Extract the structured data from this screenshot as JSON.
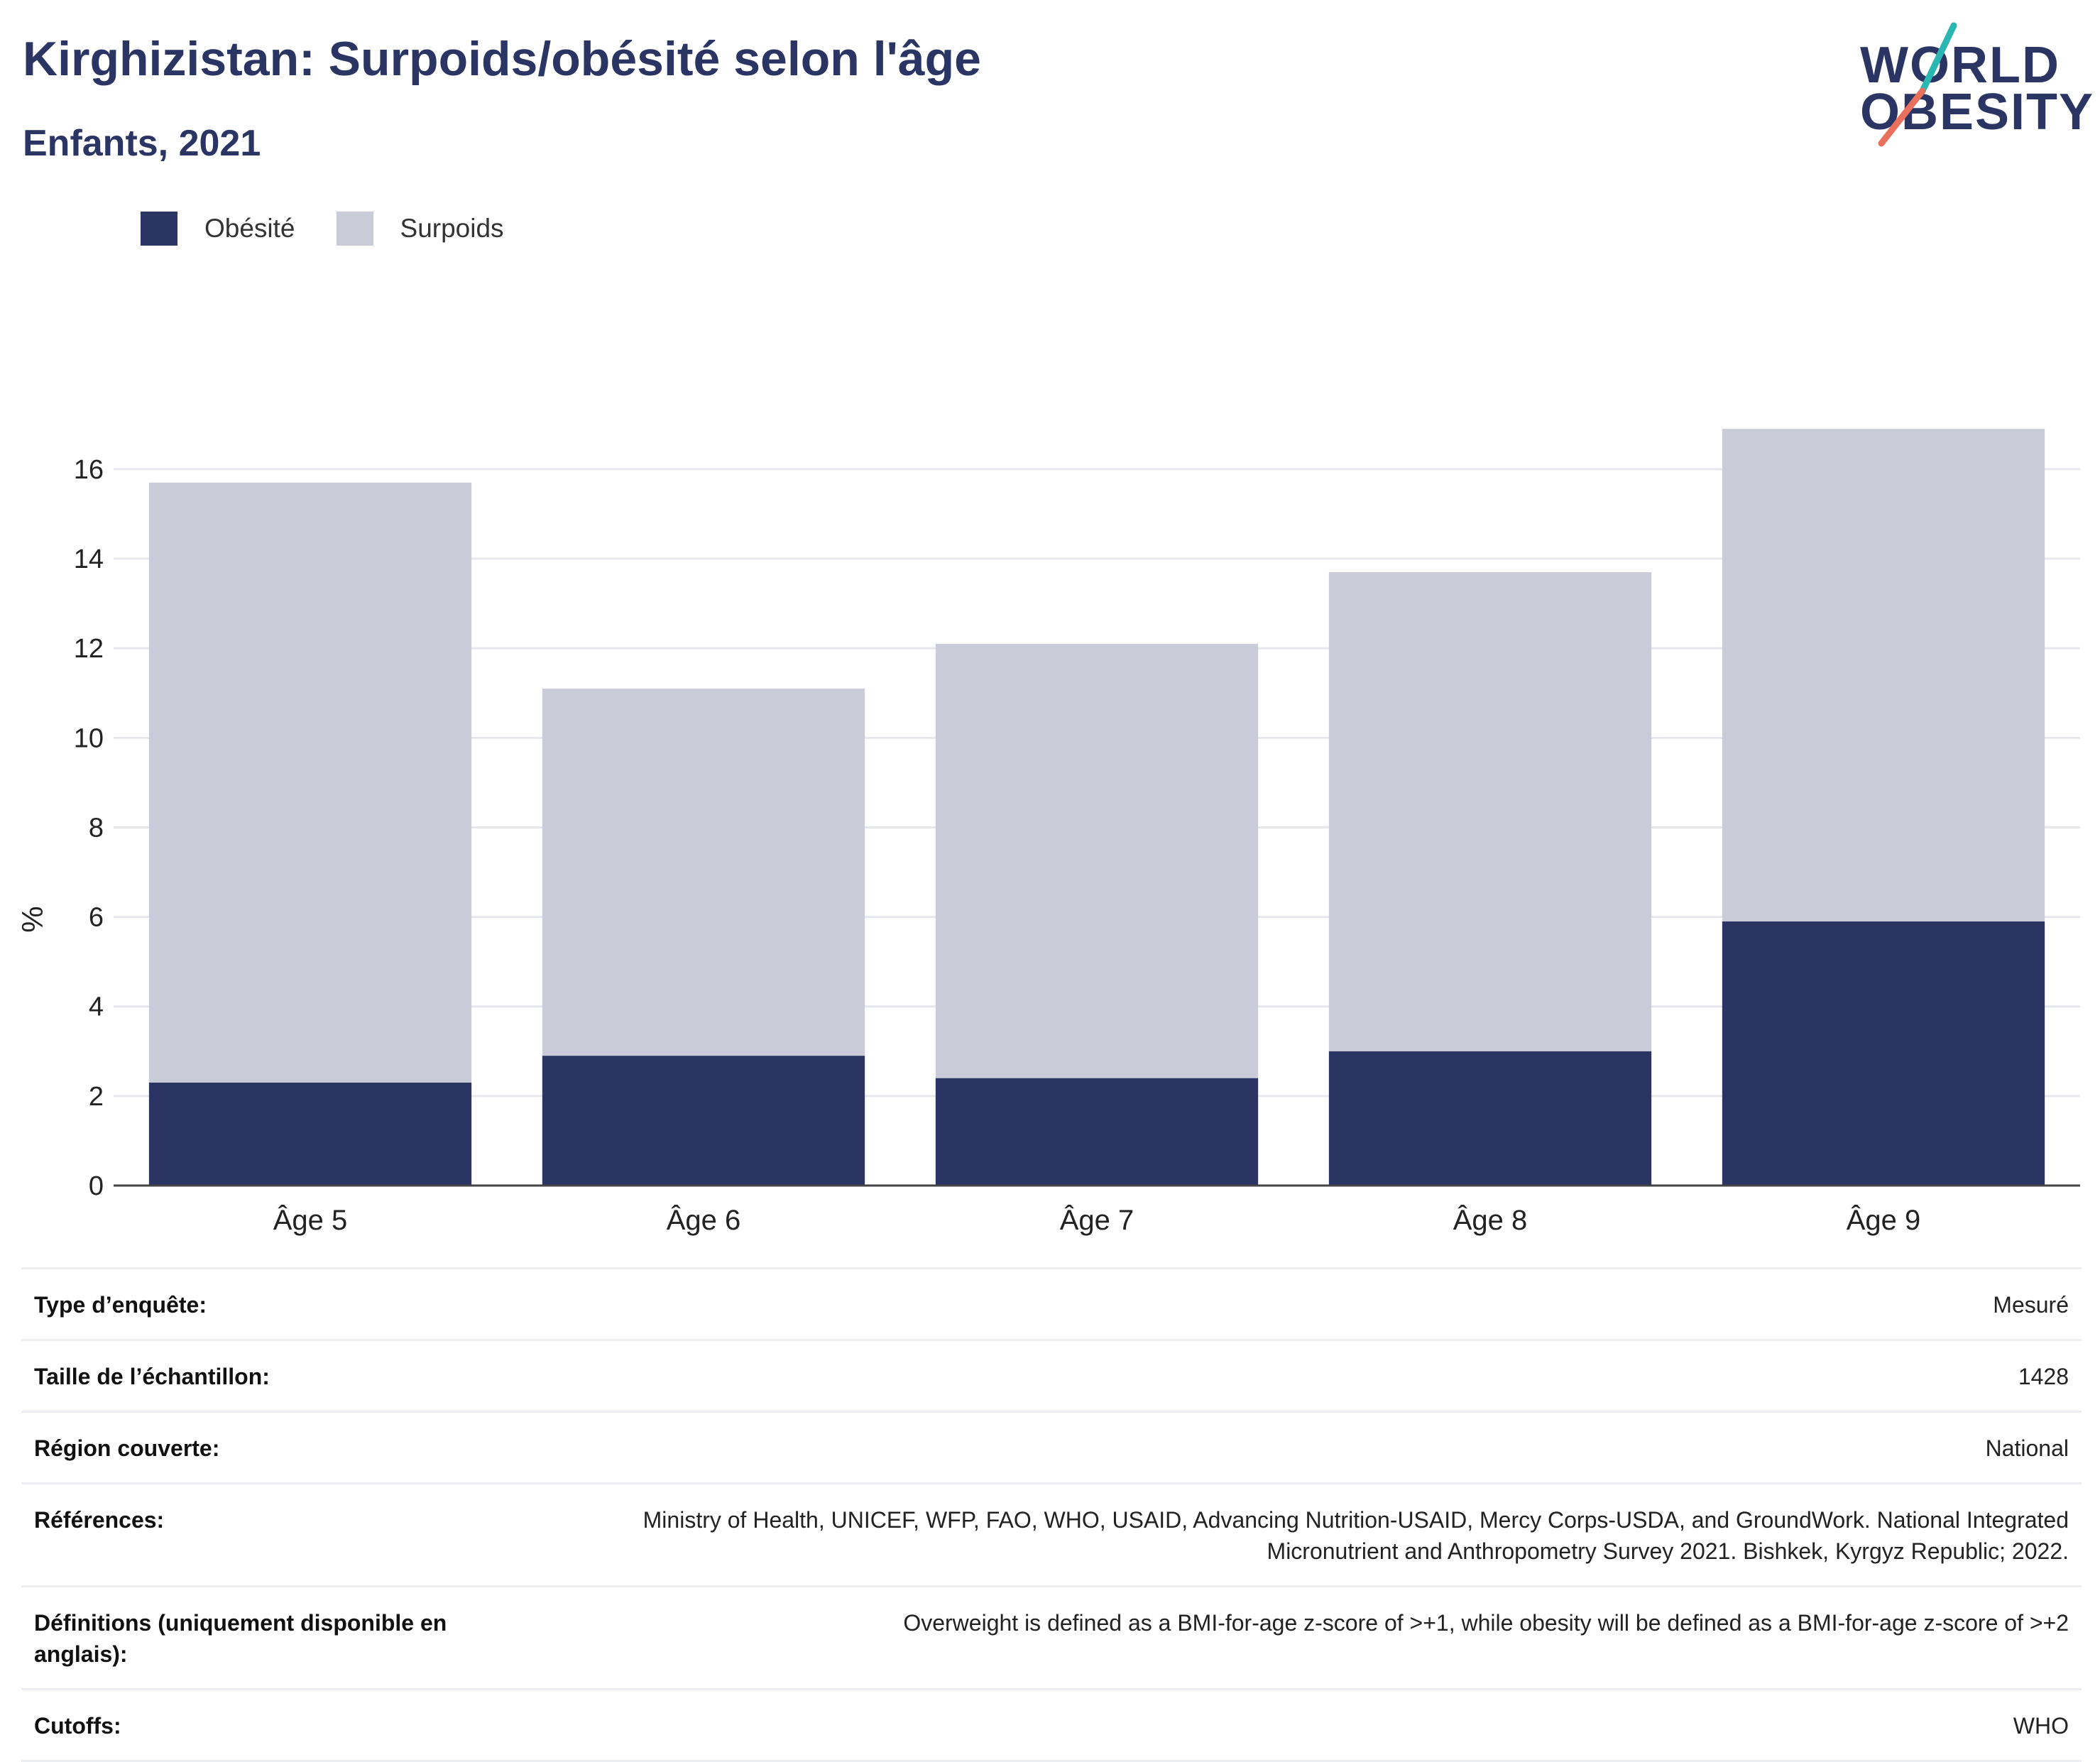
{
  "header": {
    "title": "Kirghizistan: Surpoids/obésité selon l'âge",
    "subtitle": "Enfants, 2021"
  },
  "logo": {
    "line1": "WORLD",
    "line2": "OBESITY",
    "colors": {
      "text": "#2a3564",
      "slash_top": "#2ab7b1",
      "slash_bottom": "#e8705c"
    }
  },
  "colors": {
    "obesity": "#2a3564",
    "overweight": "#c9ccd8",
    "grid": "#e6e8ee",
    "axis": "#444444"
  },
  "chart_data": {
    "type": "bar",
    "stacked": true,
    "categories": [
      "Âge 5",
      "Âge 6",
      "Âge 7",
      "Âge 8",
      "Âge 9"
    ],
    "series": [
      {
        "name": "Obésité",
        "values": [
          2.3,
          2.9,
          2.4,
          3.0,
          5.9
        ]
      },
      {
        "name": "Surpoids",
        "values": [
          13.4,
          8.2,
          9.7,
          10.7,
          11.0
        ]
      }
    ],
    "totals": [
      15.7,
      11.1,
      12.1,
      13.7,
      16.9
    ],
    "ylabel": "%",
    "yticks": [
      0,
      2,
      4,
      6,
      8,
      10,
      12,
      14,
      16
    ],
    "ylim": [
      0,
      17.6
    ],
    "grid": true,
    "legend_position": "top-left"
  },
  "info": [
    {
      "key": "Type d’enquête:",
      "value": "Mesuré"
    },
    {
      "key": "Taille de l’échantillon:",
      "value": "1428"
    },
    {
      "key": "Région couverte:",
      "value": "National"
    },
    {
      "key": "Références:",
      "value": "Ministry of Health, UNICEF, WFP, FAO, WHO, USAID, Advancing Nutrition-USAID, Mercy Corps-USDA, and GroundWork. National Integrated Micronutrient and Anthropometry Survey 2021. Bishkek, Kyrgyz Republic; 2022."
    },
    {
      "key": "Définitions (uniquement disponible en anglais):",
      "value": "Overweight is defined as a BMI-for-age z-score of >+1, while obesity will be defined as a BMI-for-age z-score of >+2"
    },
    {
      "key": "Cutoffs:",
      "value": "WHO"
    }
  ]
}
